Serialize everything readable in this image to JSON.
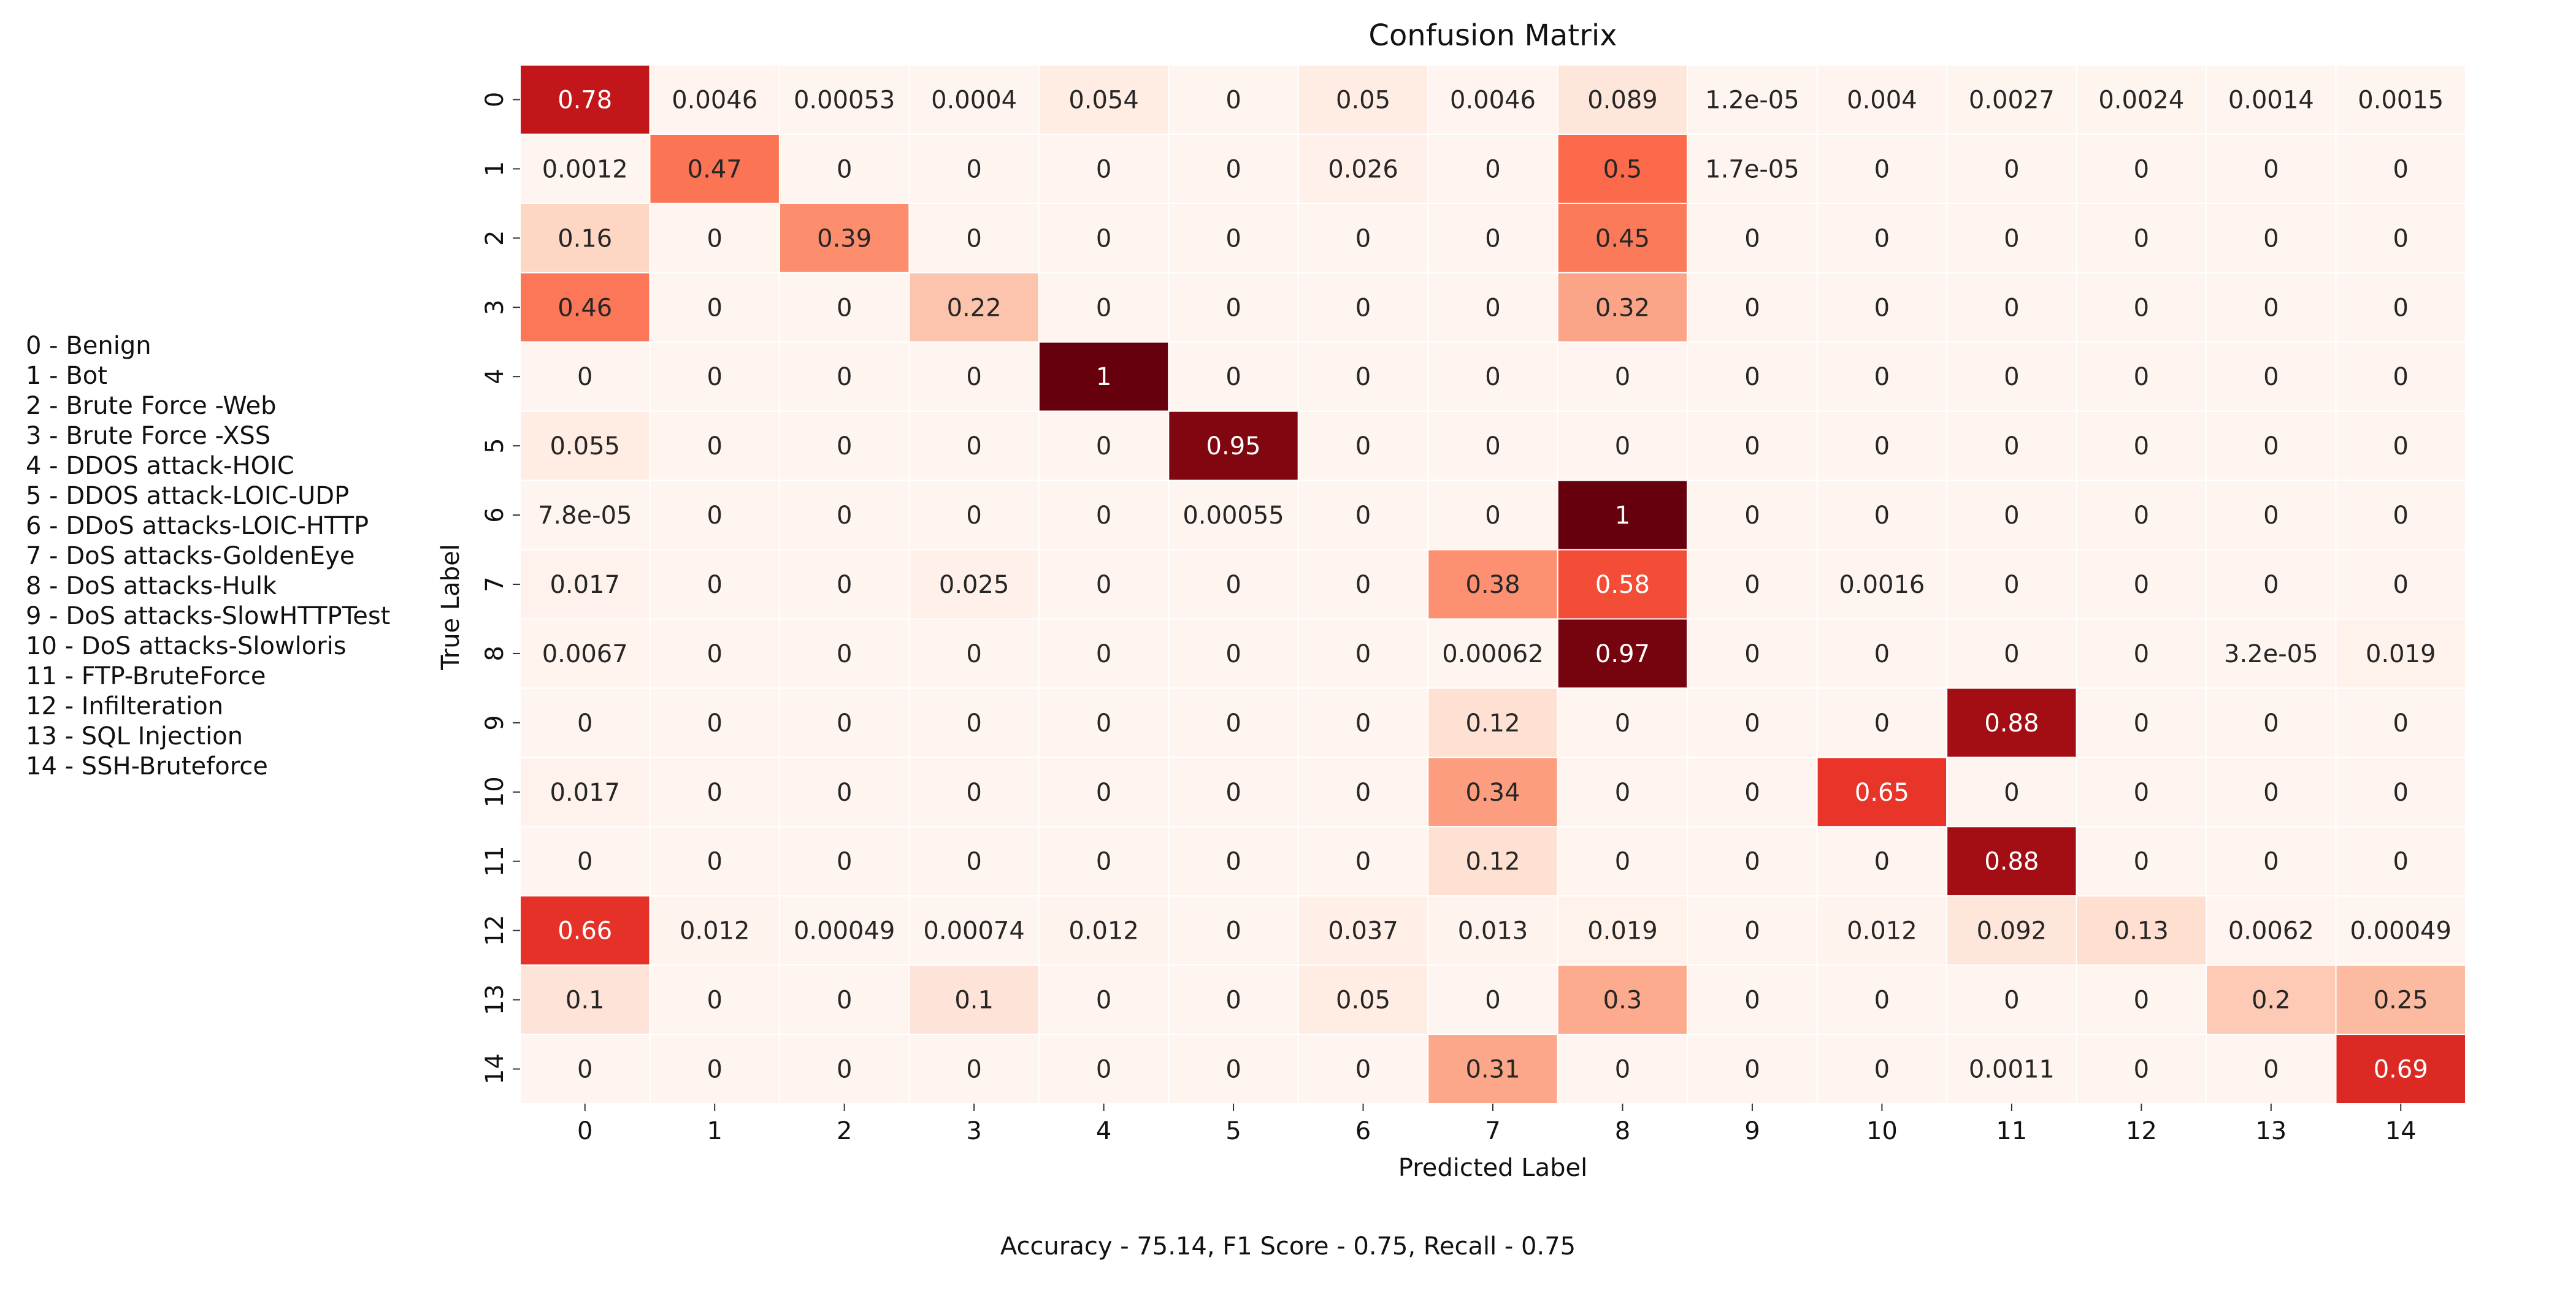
{
  "chart_data": {
    "type": "heatmap",
    "title": "Confusion Matrix",
    "xlabel": "Predicted Label",
    "ylabel": "True Label",
    "x_categories": [
      "0",
      "1",
      "2",
      "3",
      "4",
      "5",
      "6",
      "7",
      "8",
      "9",
      "10",
      "11",
      "12",
      "13",
      "14"
    ],
    "y_categories": [
      "0",
      "1",
      "2",
      "3",
      "4",
      "5",
      "6",
      "7",
      "8",
      "9",
      "10",
      "11",
      "12",
      "13",
      "14"
    ],
    "colormap": "Reds",
    "value_range": [
      0,
      1
    ],
    "matrix_labels": [
      [
        "0.78",
        "0.0046",
        "0.00053",
        "0.0004",
        "0.054",
        "0",
        "0.05",
        "0.0046",
        "0.089",
        "1.2e-05",
        "0.004",
        "0.0027",
        "0.0024",
        "0.0014",
        "0.0015"
      ],
      [
        "0.0012",
        "0.47",
        "0",
        "0",
        "0",
        "0",
        "0.026",
        "0",
        "0.5",
        "1.7e-05",
        "0",
        "0",
        "0",
        "0",
        "0"
      ],
      [
        "0.16",
        "0",
        "0.39",
        "0",
        "0",
        "0",
        "0",
        "0",
        "0.45",
        "0",
        "0",
        "0",
        "0",
        "0",
        "0"
      ],
      [
        "0.46",
        "0",
        "0",
        "0.22",
        "0",
        "0",
        "0",
        "0",
        "0.32",
        "0",
        "0",
        "0",
        "0",
        "0",
        "0"
      ],
      [
        "0",
        "0",
        "0",
        "0",
        "1",
        "0",
        "0",
        "0",
        "0",
        "0",
        "0",
        "0",
        "0",
        "0",
        "0"
      ],
      [
        "0.055",
        "0",
        "0",
        "0",
        "0",
        "0.95",
        "0",
        "0",
        "0",
        "0",
        "0",
        "0",
        "0",
        "0",
        "0"
      ],
      [
        "7.8e-05",
        "0",
        "0",
        "0",
        "0",
        "0.00055",
        "0",
        "0",
        "1",
        "0",
        "0",
        "0",
        "0",
        "0",
        "0"
      ],
      [
        "0.017",
        "0",
        "0",
        "0.025",
        "0",
        "0",
        "0",
        "0.38",
        "0.58",
        "0",
        "0.0016",
        "0",
        "0",
        "0",
        "0"
      ],
      [
        "0.0067",
        "0",
        "0",
        "0",
        "0",
        "0",
        "0",
        "0.00062",
        "0.97",
        "0",
        "0",
        "0",
        "0",
        "3.2e-05",
        "0.019"
      ],
      [
        "0",
        "0",
        "0",
        "0",
        "0",
        "0",
        "0",
        "0.12",
        "0",
        "0",
        "0",
        "0.88",
        "0",
        "0",
        "0"
      ],
      [
        "0.017",
        "0",
        "0",
        "0",
        "0",
        "0",
        "0",
        "0.34",
        "0",
        "0",
        "0.65",
        "0",
        "0",
        "0",
        "0"
      ],
      [
        "0",
        "0",
        "0",
        "0",
        "0",
        "0",
        "0",
        "0.12",
        "0",
        "0",
        "0",
        "0.88",
        "0",
        "0",
        "0"
      ],
      [
        "0.66",
        "0.012",
        "0.00049",
        "0.00074",
        "0.012",
        "0",
        "0.037",
        "0.013",
        "0.019",
        "0",
        "0.012",
        "0.092",
        "0.13",
        "0.0062",
        "0.00049"
      ],
      [
        "0.1",
        "0",
        "0",
        "0.1",
        "0",
        "0",
        "0.05",
        "0",
        "0.3",
        "0",
        "0",
        "0",
        "0",
        "0.2",
        "0.25"
      ],
      [
        "0",
        "0",
        "0",
        "0",
        "0",
        "0",
        "0",
        "0.31",
        "0",
        "0",
        "0",
        "0.0011",
        "0",
        "0",
        "0.69"
      ]
    ],
    "legend": [
      "0 - Benign",
      "1 - Bot",
      "2 - Brute Force -Web",
      "3 - Brute Force -XSS",
      "4 - DDOS attack-HOIC",
      "5 - DDOS attack-LOIC-UDP",
      "6 - DDoS attacks-LOIC-HTTP",
      "7 - DoS attacks-GoldenEye",
      "8 - DoS attacks-Hulk",
      "9 - DoS attacks-SlowHTTPTest",
      "10 - DoS attacks-Slowloris",
      "11 - FTP-BruteForce",
      "12 - Infilteration",
      "13 - SQL Injection",
      "14 - SSH-Bruteforce"
    ],
    "footer": "Accuracy - 75.14, F1 Score - 0.75, Recall - 0.75"
  }
}
